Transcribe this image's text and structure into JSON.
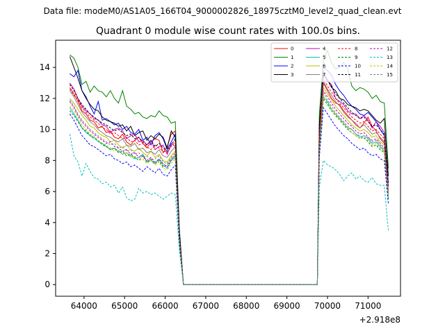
{
  "header": {
    "file_label": "Data file: modeM0/AS1A05_166T04_9000002826_18975cztM0_level2_quad_clean.evt"
  },
  "chart_data": {
    "type": "line",
    "title": "Quadrant 0 module wise count rates with 100.0s bins.",
    "xlabel": "",
    "ylabel": "",
    "x_offset_label": "+2.918e8",
    "xlim": [
      63300,
      71800
    ],
    "ylim": [
      -0.75,
      15.75
    ],
    "xticks": [
      64000,
      65000,
      66000,
      67000,
      68000,
      69000,
      70000,
      71000
    ],
    "xtick_labels": [
      "64000",
      "65000",
      "66000",
      "67000",
      "68000",
      "69000",
      "70000",
      "71000"
    ],
    "yticks": [
      0,
      2,
      4,
      6,
      8,
      10,
      12,
      14
    ],
    "ytick_labels": [
      "0",
      "2",
      "4",
      "6",
      "8",
      "10",
      "12",
      "14"
    ],
    "grid": false,
    "legend": {
      "placement": "top-right",
      "columns": 4
    },
    "segments": {
      "orbit1": {
        "start": 63650,
        "step": 100,
        "count": 28
      },
      "gap": {
        "from": 66450,
        "to": 69750,
        "value": 0
      },
      "orbit2": {
        "start": 69800,
        "step": 100,
        "count": 18
      }
    },
    "series": [
      {
        "name": "0",
        "color": "#ff0000",
        "dash": "solid",
        "orbit1": [
          12.7,
          12.3,
          11.8,
          11.2,
          11.0,
          10.6,
          10.5,
          10.1,
          10.2,
          9.8,
          9.9,
          9.5,
          9.4,
          9.7,
          9.2,
          9.0,
          9.3,
          9.5,
          9.1,
          8.8,
          9.2,
          9.4,
          9.3,
          8.5,
          8.9,
          9.7,
          9.9,
          3.1
        ],
        "orbit2": [
          9.0,
          13.0,
          12.5,
          12.0,
          11.7,
          11.6,
          11.2,
          10.9,
          10.6,
          10.3,
          10.1,
          10.4,
          10.8,
          10.2,
          9.9,
          9.4,
          9.1,
          6.0
        ]
      },
      {
        "name": "1",
        "color": "#008000",
        "dash": "solid",
        "orbit1": [
          14.8,
          14.6,
          14.0,
          12.9,
          13.1,
          12.4,
          12.8,
          12.5,
          12.4,
          12.1,
          12.5,
          12.0,
          11.7,
          12.5,
          11.5,
          11.3,
          11.0,
          11.1,
          10.8,
          10.7,
          10.9,
          10.8,
          11.2,
          10.9,
          10.8,
          10.4,
          10.5,
          3.6
        ],
        "orbit2": [
          11.0,
          14.4,
          15.1,
          14.3,
          13.9,
          14.0,
          14.3,
          13.9,
          12.8,
          12.5,
          12.7,
          12.6,
          12.4,
          12.0,
          12.2,
          11.8,
          11.7,
          7.5
        ]
      },
      {
        "name": "2",
        "color": "#0000ff",
        "dash": "solid",
        "orbit1": [
          13.6,
          13.4,
          13.8,
          12.5,
          12.1,
          11.5,
          11.0,
          11.8,
          10.6,
          10.7,
          10.5,
          10.3,
          10.4,
          10.0,
          10.2,
          9.8,
          9.7,
          10.0,
          9.3,
          9.5,
          9.0,
          9.6,
          9.8,
          9.4,
          8.7,
          9.2,
          9.7,
          3.3
        ],
        "orbit2": [
          10.2,
          14.0,
          13.8,
          13.5,
          12.9,
          12.5,
          12.2,
          11.8,
          11.5,
          11.3,
          11.0,
          10.9,
          11.1,
          10.8,
          10.5,
          10.0,
          9.6,
          6.6
        ]
      },
      {
        "name": "3",
        "color": "#000000",
        "dash": "solid",
        "orbit1": [
          14.7,
          14.0,
          13.3,
          12.5,
          12.0,
          11.6,
          11.3,
          11.2,
          10.8,
          10.6,
          10.5,
          10.4,
          10.2,
          10.3,
          9.9,
          10.2,
          9.6,
          9.8,
          9.9,
          9.3,
          9.6,
          9.4,
          9.7,
          9.5,
          8.8,
          9.9,
          9.5,
          3.4
        ],
        "orbit2": [
          10.4,
          13.5,
          13.2,
          12.7,
          12.5,
          12.0,
          11.9,
          11.6,
          11.5,
          11.4,
          11.2,
          11.3,
          11.2,
          10.9,
          10.6,
          10.4,
          10.7,
          7.0
        ]
      },
      {
        "name": "4",
        "color": "#bf00bf",
        "dash": "solid",
        "orbit1": [
          13.0,
          12.6,
          12.0,
          11.5,
          11.2,
          11.0,
          10.7,
          10.6,
          10.3,
          10.2,
          9.8,
          10.0,
          10.1,
          9.9,
          9.4,
          9.6,
          9.7,
          9.2,
          9.3,
          9.0,
          9.3,
          8.7,
          8.9,
          9.0,
          8.4,
          9.1,
          8.9,
          3.0
        ],
        "orbit2": [
          9.8,
          13.6,
          13.1,
          12.9,
          12.0,
          11.8,
          11.6,
          11.2,
          11.0,
          11.0,
          10.7,
          10.9,
          10.6,
          10.1,
          10.5,
          10.2,
          9.8,
          6.3
        ]
      },
      {
        "name": "5",
        "color": "#00bfbf",
        "dash": "solid",
        "orbit1": [
          11.4,
          11.0,
          10.6,
          10.1,
          9.8,
          9.6,
          9.5,
          9.2,
          9.1,
          8.9,
          8.7,
          8.8,
          8.6,
          8.4,
          8.5,
          8.3,
          8.1,
          8.2,
          8.4,
          7.9,
          8.0,
          7.8,
          8.1,
          7.7,
          7.5,
          8.0,
          8.2,
          2.8
        ],
        "orbit2": [
          8.7,
          12.1,
          11.8,
          11.3,
          11.0,
          10.7,
          10.4,
          10.1,
          10.0,
          9.7,
          9.5,
          9.6,
          9.4,
          9.1,
          9.2,
          8.9,
          8.6,
          5.6
        ]
      },
      {
        "name": "6",
        "color": "#bfbf00",
        "dash": "solid",
        "orbit1": [
          12.0,
          11.7,
          11.3,
          10.9,
          10.6,
          10.2,
          10.1,
          9.8,
          9.6,
          9.5,
          9.2,
          9.3,
          9.0,
          8.8,
          9.0,
          8.7,
          8.6,
          8.8,
          8.5,
          8.3,
          8.6,
          8.2,
          8.4,
          8.0,
          7.9,
          8.3,
          8.6,
          2.9
        ],
        "orbit2": [
          9.2,
          12.7,
          12.3,
          11.9,
          11.5,
          11.2,
          10.9,
          10.6,
          10.3,
          10.1,
          9.9,
          10.0,
          9.8,
          9.5,
          9.6,
          9.2,
          9.0,
          5.9
        ]
      },
      {
        "name": "7",
        "color": "#808080",
        "dash": "solid",
        "orbit1": [
          12.5,
          12.1,
          11.6,
          11.1,
          10.8,
          10.5,
          10.3,
          10.0,
          9.8,
          9.6,
          9.5,
          9.3,
          9.2,
          9.4,
          9.0,
          8.9,
          9.1,
          8.7,
          8.8,
          8.5,
          8.6,
          8.4,
          8.7,
          8.3,
          8.2,
          8.6,
          8.9,
          3.0
        ],
        "orbit2": [
          9.5,
          13.1,
          12.6,
          12.2,
          11.8,
          11.5,
          11.1,
          10.8,
          10.6,
          10.4,
          10.1,
          10.3,
          10.0,
          9.7,
          9.8,
          9.5,
          9.2,
          6.1
        ]
      },
      {
        "name": "8",
        "color": "#ff0000",
        "dash": "dashed",
        "orbit1": [
          12.6,
          12.2,
          11.9,
          11.4,
          11.1,
          10.8,
          10.6,
          10.4,
          10.1,
          10.0,
          9.7,
          9.8,
          9.6,
          9.4,
          9.5,
          9.2,
          9.3,
          9.0,
          9.1,
          8.9,
          8.7,
          9.0,
          8.8,
          8.6,
          8.5,
          8.9,
          9.2,
          3.1
        ],
        "orbit2": [
          9.6,
          13.3,
          12.8,
          12.4,
          12.0,
          11.7,
          11.4,
          11.1,
          10.8,
          10.6,
          10.4,
          10.5,
          10.2,
          9.9,
          10.0,
          9.7,
          9.4,
          6.2
        ]
      },
      {
        "name": "9",
        "color": "#008000",
        "dash": "dashed",
        "orbit1": [
          11.2,
          10.9,
          10.5,
          10.1,
          9.9,
          9.6,
          9.4,
          9.3,
          9.0,
          8.9,
          8.7,
          8.8,
          8.5,
          8.6,
          8.3,
          8.4,
          8.2,
          8.0,
          8.3,
          7.9,
          8.1,
          7.8,
          8.0,
          7.6,
          7.7,
          8.1,
          8.3,
          2.8
        ],
        "orbit2": [
          8.8,
          12.0,
          11.6,
          11.2,
          10.9,
          10.6,
          10.3,
          10.0,
          9.8,
          9.6,
          9.4,
          9.5,
          9.2,
          8.9,
          9.0,
          8.7,
          8.5,
          5.5
        ]
      },
      {
        "name": "10",
        "color": "#0000ff",
        "dash": "dashed",
        "orbit1": [
          11.0,
          10.6,
          10.1,
          9.6,
          9.3,
          9.0,
          8.9,
          8.7,
          8.5,
          8.3,
          8.4,
          8.1,
          8.0,
          7.8,
          7.9,
          7.6,
          7.7,
          7.5,
          7.3,
          7.6,
          7.4,
          7.2,
          7.5,
          7.1,
          7.0,
          7.4,
          7.7,
          2.6
        ],
        "orbit2": [
          8.2,
          11.4,
          11.0,
          10.6,
          10.2,
          9.9,
          9.6,
          9.4,
          9.1,
          8.9,
          8.7,
          8.8,
          8.5,
          8.3,
          8.4,
          8.1,
          8.0,
          5.2
        ]
      },
      {
        "name": "11",
        "color": "#000000",
        "dash": "dashed",
        "orbit1": [
          12.9,
          12.5,
          12.0,
          11.6,
          11.3,
          11.0,
          10.8,
          10.6,
          10.4,
          10.3,
          10.1,
          9.9,
          10.0,
          9.8,
          9.6,
          9.7,
          9.4,
          9.5,
          9.2,
          9.0,
          9.3,
          8.9,
          9.1,
          8.8,
          8.6,
          9.0,
          9.4,
          3.2
        ],
        "orbit2": [
          9.9,
          13.7,
          13.2,
          12.8,
          12.3,
          12.0,
          11.7,
          11.4,
          11.1,
          10.9,
          10.7,
          10.8,
          10.5,
          10.2,
          10.3,
          10.0,
          9.7,
          6.4
        ]
      },
      {
        "name": "12",
        "color": "#bf00bf",
        "dash": "dashed",
        "orbit1": [
          11.8,
          11.4,
          10.9,
          10.5,
          10.2,
          9.9,
          9.7,
          9.5,
          9.3,
          9.1,
          9.2,
          8.9,
          8.8,
          8.6,
          8.7,
          8.4,
          8.5,
          8.2,
          8.3,
          8.0,
          8.2,
          7.9,
          8.1,
          7.8,
          7.6,
          8.0,
          8.4,
          2.9
        ],
        "orbit2": [
          9.0,
          12.5,
          12.1,
          11.7,
          11.3,
          11.0,
          10.7,
          10.4,
          10.2,
          9.9,
          9.7,
          9.8,
          9.5,
          9.3,
          9.4,
          9.1,
          8.8,
          5.8
        ]
      },
      {
        "name": "13",
        "color": "#00bfbf",
        "dash": "dashed",
        "orbit1": [
          9.7,
          8.3,
          7.9,
          7.0,
          7.8,
          7.3,
          6.9,
          6.8,
          6.5,
          6.6,
          6.3,
          6.4,
          5.9,
          6.3,
          5.6,
          5.4,
          5.5,
          6.2,
          5.9,
          6.0,
          5.8,
          5.9,
          5.7,
          5.5,
          5.7,
          5.9,
          5.8,
          2.2
        ],
        "orbit2": [
          6.3,
          8.0,
          7.7,
          7.6,
          7.4,
          7.1,
          6.7,
          7.0,
          7.2,
          6.8,
          7.0,
          6.7,
          6.6,
          6.9,
          6.5,
          6.4,
          6.4,
          3.5
        ]
      },
      {
        "name": "14",
        "color": "#bfbf00",
        "dash": "dashed",
        "orbit1": [
          11.5,
          11.2,
          10.8,
          10.3,
          10.0,
          9.7,
          9.6,
          9.3,
          9.1,
          9.0,
          8.8,
          8.6,
          8.7,
          8.4,
          8.5,
          8.2,
          8.3,
          8.0,
          8.1,
          7.8,
          8.0,
          7.7,
          7.9,
          7.5,
          7.4,
          7.8,
          8.1,
          2.8
        ],
        "orbit2": [
          8.6,
          12.2,
          11.7,
          11.3,
          11.0,
          10.6,
          10.4,
          10.1,
          9.8,
          9.6,
          9.4,
          9.5,
          9.3,
          9.0,
          9.1,
          8.8,
          8.6,
          5.7
        ]
      },
      {
        "name": "15",
        "color": "#808080",
        "dash": "dashed",
        "orbit1": [
          11.9,
          11.5,
          11.0,
          10.6,
          10.3,
          10.0,
          9.8,
          9.6,
          9.4,
          9.2,
          9.0,
          9.1,
          8.8,
          8.9,
          8.6,
          8.7,
          8.4,
          8.5,
          8.2,
          8.3,
          8.0,
          8.1,
          8.3,
          7.9,
          7.8,
          8.2,
          8.5,
          2.9
        ],
        "orbit2": [
          8.9,
          12.4,
          11.9,
          11.5,
          11.1,
          10.8,
          10.5,
          10.2,
          10.0,
          9.7,
          9.6,
          9.4,
          9.5,
          9.2,
          9.3,
          9.0,
          8.7,
          5.8
        ]
      }
    ]
  }
}
